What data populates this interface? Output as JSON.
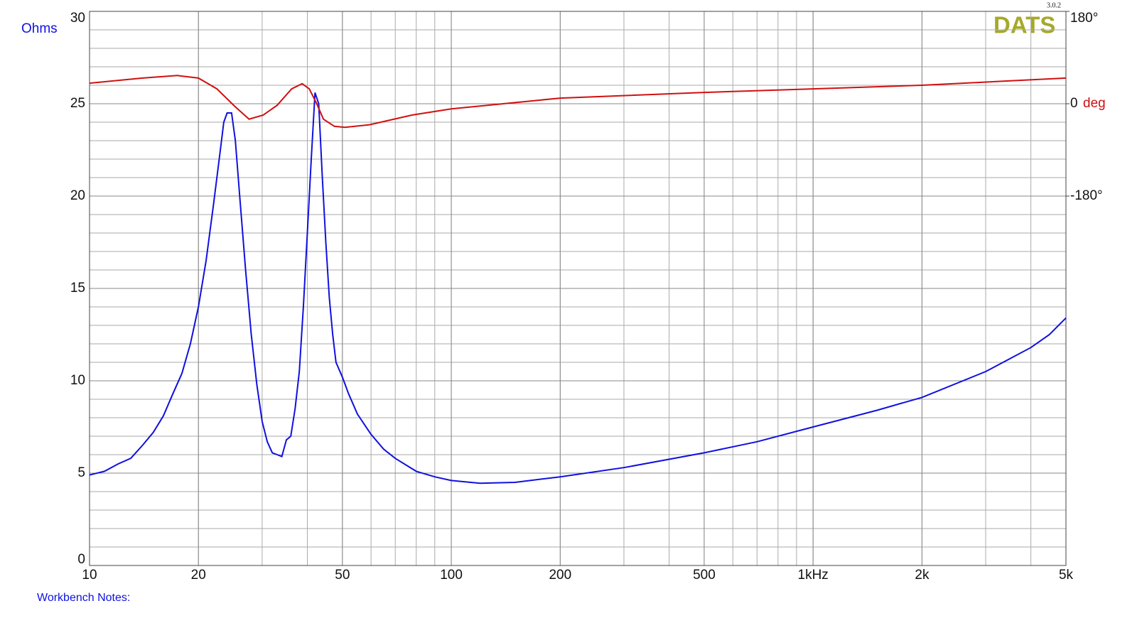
{
  "chart_data": {
    "type": "line",
    "y_label": "Ohms",
    "y2_label": "deg",
    "logo": "DATS",
    "version": "3.0.2",
    "footer": "Workbench Notes:",
    "xlim": [
      10,
      5000
    ],
    "x_log": true,
    "xticks": [
      10,
      20,
      50,
      100,
      200,
      500,
      {
        "value": 1000,
        "label": "1kHz"
      },
      {
        "value": 2000,
        "label": "2k"
      },
      {
        "value": 5000,
        "label": "5k"
      }
    ],
    "ylim": [
      0,
      30
    ],
    "yticks": [
      0,
      5,
      10,
      15,
      20,
      25,
      30
    ],
    "y2lim": [
      -900,
      180
    ],
    "y2ticks": [
      {
        "value": 180,
        "label": "180°"
      },
      0,
      {
        "value": -180,
        "label": "-180°"
      }
    ],
    "grid": true,
    "series": [
      {
        "color": "#1010e0",
        "x": [
          10,
          11,
          12,
          13,
          14,
          15,
          16,
          17,
          18,
          19,
          20,
          21,
          22,
          23,
          23.5,
          24,
          24.7,
          25.3,
          26,
          27,
          28,
          29,
          30,
          31,
          32,
          33,
          34,
          35,
          36,
          37,
          38,
          39,
          40,
          41,
          42,
          43,
          44,
          45,
          46,
          47,
          48,
          50,
          52,
          55,
          60,
          65,
          70,
          80,
          90,
          100,
          120,
          150,
          200,
          300,
          500,
          700,
          1000,
          1500,
          2000,
          3000,
          4000,
          4500,
          5000
        ],
        "values": [
          4.9,
          5.1,
          5.5,
          5.8,
          6.5,
          7.2,
          8.1,
          9.3,
          10.4,
          12,
          14,
          16.5,
          19.5,
          22.5,
          24,
          24.5,
          24.5,
          23,
          20,
          16,
          12.5,
          9.8,
          7.8,
          6.7,
          6.1,
          6.0,
          5.9,
          6.8,
          7.0,
          8.5,
          10.5,
          14,
          18,
          22,
          25.6,
          25,
          21,
          17.5,
          14.5,
          12.5,
          11,
          10.2,
          9.3,
          8.2,
          7.1,
          6.3,
          5.8,
          5.1,
          4.8,
          4.6,
          4.45,
          4.5,
          4.8,
          5.3,
          6.1,
          6.7,
          7.5,
          8.4,
          9.1,
          10.5,
          11.8,
          12.5,
          13.4
        ]
      },
      {
        "color": "#d01010",
        "axis": "y2",
        "x": [
          10,
          14,
          17.5,
          20,
          22.5,
          25.2,
          27.6,
          30.2,
          33,
          36.2,
          38.7,
          40.5,
          42.4,
          44.3,
          47.5,
          50.8,
          59.4,
          78,
          100,
          200,
          500,
          1000,
          2000,
          5000
        ],
        "values": [
          40,
          50,
          55,
          50,
          29,
          -5,
          -30,
          -22,
          -3,
          29,
          39,
          29,
          1,
          -30,
          -44,
          -46,
          -41,
          -22,
          -10,
          11,
          22,
          29,
          36,
          50
        ]
      }
    ]
  }
}
